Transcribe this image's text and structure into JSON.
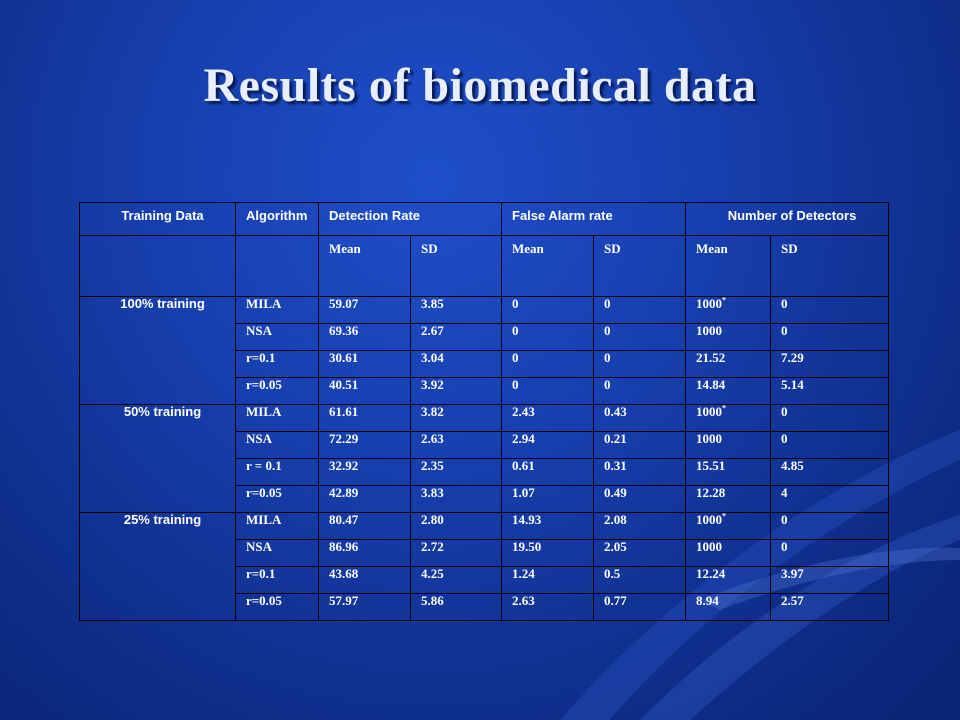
{
  "slide": {
    "title": "Results of biomedical data"
  },
  "table": {
    "headers": {
      "training_data": "Training Data",
      "algorithm": "Algorithm",
      "detection_rate": "Detection Rate",
      "false_alarm_rate": "False Alarm rate",
      "number_of_detectors": "Number of Detectors"
    },
    "subheaders": {
      "dr_mean": "Mean",
      "dr_sd": "SD",
      "fa_mean": "Mean",
      "fa_sd": "SD",
      "nd_mean": "Mean",
      "nd_sd": "SD"
    },
    "groups": [
      {
        "label": "100% training",
        "rows": [
          [
            "MILA",
            "59.07",
            "3.85",
            "0",
            "0",
            "1000",
            "*",
            "0"
          ],
          [
            "NSA",
            "69.36",
            "2.67",
            "0",
            "0",
            "1000",
            "",
            "0"
          ],
          [
            "r=0.1",
            "30.61",
            "3.04",
            "0",
            "0",
            "21.52",
            "",
            "7.29"
          ],
          [
            "r=0.05",
            "40.51",
            "3.92",
            "0",
            "0",
            "14.84",
            "",
            "5.14"
          ]
        ]
      },
      {
        "label": "50% training",
        "rows": [
          [
            "MILA",
            "61.61",
            "3.82",
            "2.43",
            "0.43",
            "1000",
            "*",
            "0"
          ],
          [
            "NSA",
            "72.29",
            "2.63",
            "2.94",
            "0.21",
            "1000",
            "",
            "0"
          ],
          [
            "r = 0.1",
            "32.92",
            "2.35",
            "0.61",
            "0.31",
            "15.51",
            "",
            "4.85"
          ],
          [
            "r=0.05",
            "42.89",
            "3.83",
            "1.07",
            "0.49",
            "12.28",
            "",
            "4"
          ]
        ]
      },
      {
        "label": "25% training",
        "rows": [
          [
            "MILA",
            "80.47",
            "2.80",
            "14.93",
            "2.08",
            "1000",
            "*",
            "0"
          ],
          [
            "NSA",
            "86.96",
            "2.72",
            "19.50",
            "2.05",
            "1000",
            "",
            "0"
          ],
          [
            "r=0.1",
            "43.68",
            "4.25",
            "1.24",
            "0.5",
            "12.24",
            "",
            "3.97"
          ],
          [
            "r=0.05",
            "57.97",
            "5.86",
            "2.63",
            "0.77",
            "8.94",
            "",
            "2.57"
          ]
        ]
      }
    ]
  },
  "colors": {
    "background": "#1740b0",
    "text": "#ffffff",
    "title": "#e9eefc",
    "grid": "#000000"
  }
}
